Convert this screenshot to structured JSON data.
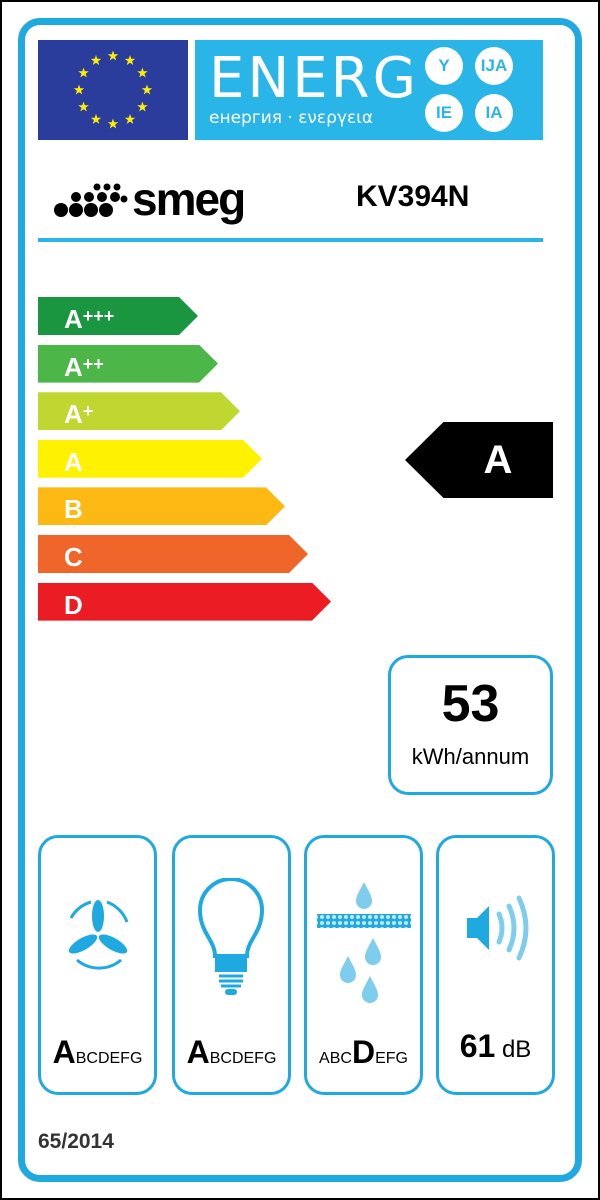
{
  "header": {
    "energy_word": "ENERG",
    "energy_sub": "енергия · ενεργεια",
    "suffixes": [
      "Y",
      "IJA",
      "IE",
      "IA"
    ]
  },
  "brand": {
    "name": "smeg",
    "model": "KV394N"
  },
  "scale": {
    "classes": [
      {
        "letter": "A",
        "plus": "+++",
        "color": "#1a9641"
      },
      {
        "letter": "A",
        "plus": "++",
        "color": "#4cb748"
      },
      {
        "letter": "A",
        "plus": "+",
        "color": "#bfd730"
      },
      {
        "letter": "A",
        "plus": "",
        "color": "#fff200"
      },
      {
        "letter": "B",
        "plus": "",
        "color": "#fcb813"
      },
      {
        "letter": "C",
        "plus": "",
        "color": "#f0652a"
      },
      {
        "letter": "D",
        "plus": "",
        "color": "#ec1c24"
      }
    ],
    "rating": "A"
  },
  "consumption": {
    "value": "53",
    "unit": "kWh/annum"
  },
  "indicators": [
    {
      "icon": "fan-icon",
      "pre": "",
      "grade": "A",
      "post": "BCDEFG"
    },
    {
      "icon": "light-bulb-icon",
      "pre": "",
      "grade": "A",
      "post": "BCDEFG"
    },
    {
      "icon": "grease-filter-icon",
      "pre": "ABC",
      "grade": "D",
      "post": "EFG"
    },
    {
      "icon": "speaker-icon",
      "value": "61",
      "unit": "dB"
    }
  ],
  "regulation": "65/2014",
  "colors": {
    "label_blue": "#1ea9e1",
    "eu_blue": "#2b3d9c",
    "star": "#ffed00"
  }
}
